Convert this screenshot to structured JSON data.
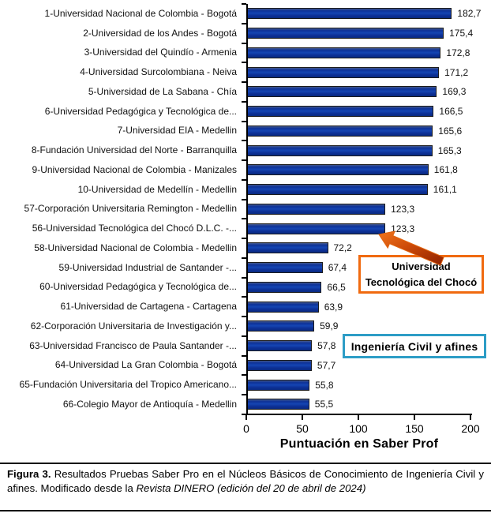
{
  "chart_data": {
    "type": "bar",
    "orientation": "horizontal",
    "title": "",
    "xlabel": "Puntuación en Saber Prof",
    "ylabel": "",
    "xlim": [
      0,
      200
    ],
    "x_ticks": [
      0,
      50,
      100,
      150,
      200
    ],
    "x_tick_labels": [
      "0",
      "50",
      "100",
      "150",
      "200"
    ],
    "grid": false,
    "legend": false,
    "categories": [
      "1-Universidad Nacional de Colombia - Bogotá",
      "2-Universidad de los Andes - Bogotá",
      "3-Universidad del Quindío - Armenia",
      "4-Universidad Surcolombiana - Neiva",
      "5-Universidad de La Sabana - Chía",
      "6-Universidad Pedagógica y Tecnológica de...",
      "7-Universidad EIA - Medellin",
      "8-Fundación Universidad del Norte - Barranquilla",
      "9-Universidad Nacional de Colombia - Manizales",
      "10-Universidad de Medellín - Medellin",
      "57-Corporación Universitaria Remington - Medellin",
      "56-Universidad Tecnológica del Chocó D.L.C.  -...",
      "58-Universidad Nacional de Colombia - Medellin",
      "59-Universidad Industrial de Santander -...",
      "60-Universidad Pedagógica y Tecnológica de...",
      "61-Universidad de Cartagena - Cartagena",
      "62-Corporación Universitaria de Investigación y...",
      "63-Universidad Francisco de Paula Santander -...",
      "64-Universidad La Gran Colombia - Bogotá",
      "65-Fundación Universitaria del Tropico Americano...",
      "66-Colegio Mayor de Antioquía - Medellin"
    ],
    "values": [
      182.7,
      175.4,
      172.8,
      171.2,
      169.3,
      166.5,
      165.6,
      165.3,
      161.8,
      161.1,
      123.3,
      123.3,
      72.2,
      67.4,
      66.5,
      63.9,
      59.9,
      57.8,
      57.7,
      55.8,
      55.5
    ],
    "value_labels": [
      "182,7",
      "175,4",
      "172,8",
      "171,2",
      "169,3",
      "166,5",
      "165,6",
      "165,3",
      "161,8",
      "161,1",
      "123,3",
      "123,3",
      "72,2",
      "67,4",
      "66,5",
      "63,9",
      "59,9",
      "57,8",
      "57,7",
      "55,8",
      "55,5"
    ],
    "bar_color": "#0D3298",
    "bar_border_color": "#1C1C1C",
    "annotations": [
      {
        "type": "callout-box",
        "text": "Universidad Tecnológica del Chocó",
        "border_color": "#F06A10",
        "points_to_value": 123.3
      },
      {
        "type": "label-box",
        "text": "Ingeniería Civil y afines",
        "border_color": "#2D9DC6"
      }
    ]
  },
  "axis": {
    "x_title": "Puntuación en Saber Prof"
  },
  "callout": {
    "line1": "Universidad",
    "line2": "Tecnológica del Chocó",
    "arrow_color_start": "#F0751E",
    "arrow_color_end": "#8E2100"
  },
  "category_box": {
    "label": "Ingeniería Civil y afines"
  },
  "caption": {
    "figure_label": "Figura 3.",
    "text_regular": " Resultados Pruebas Saber Pro en el Núcleos Básicos de Conocimiento de Ingeniería Civil y afines. Modificado desde la ",
    "text_italic": "Revista DINERO (edición del 20 de abril de 2024)"
  }
}
